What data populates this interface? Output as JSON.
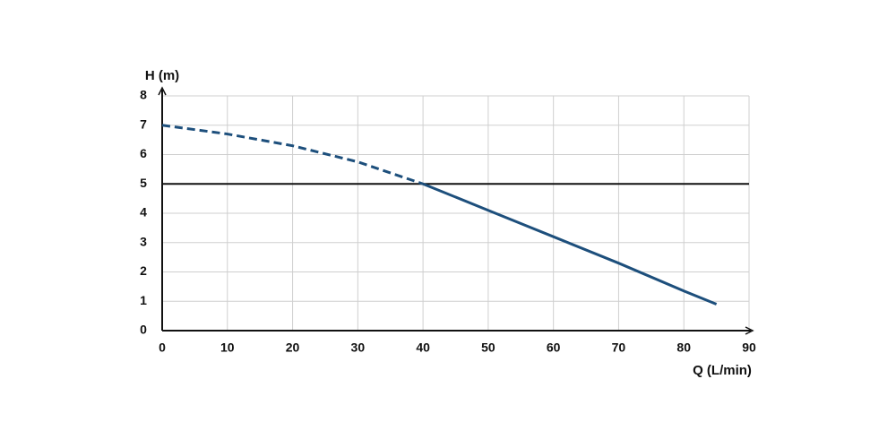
{
  "chart_data": {
    "type": "line",
    "ylabel": "H (m)",
    "xlabel": "Q (L/min)",
    "x": [
      0,
      10,
      20,
      30,
      40,
      50,
      60,
      70,
      80,
      85
    ],
    "series": [
      {
        "color": "#1d4f7c",
        "dashed": true,
        "values": [
          7,
          6.7,
          6.3,
          5.75,
          5,
          null,
          null,
          null,
          null,
          null
        ]
      },
      {
        "color": "#1d4f7c",
        "dashed": false,
        "values": [
          null,
          null,
          null,
          null,
          5,
          4.1,
          3.2,
          2.3,
          1.35,
          0.9
        ]
      }
    ],
    "reference_line": {
      "y": 5,
      "color": "#111111"
    },
    "xlim": [
      0,
      90
    ],
    "xticks": [
      0,
      10,
      20,
      30,
      40,
      50,
      60,
      70,
      80,
      90
    ],
    "ylim": [
      0,
      8
    ],
    "yticks": [
      0,
      1,
      2,
      3,
      4,
      5,
      6,
      7,
      8
    ],
    "grid": true
  }
}
